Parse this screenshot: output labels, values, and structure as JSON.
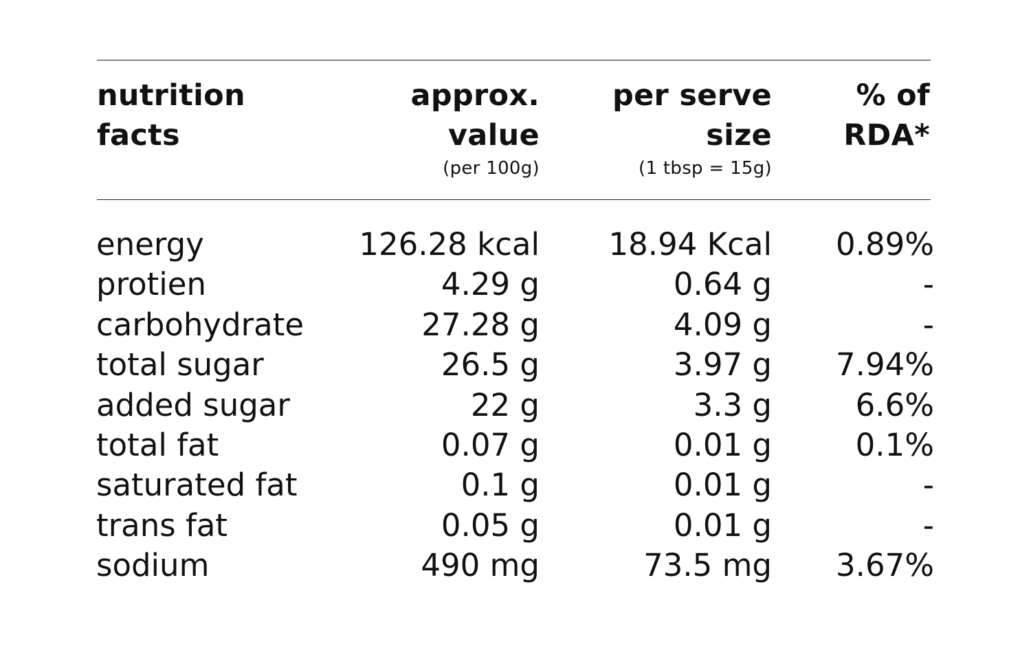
{
  "table": {
    "headers": {
      "col1": [
        "nutrition",
        "facts"
      ],
      "col2": [
        "approx.",
        "value"
      ],
      "col2_sub": "(per 100g)",
      "col3": [
        "per serve",
        "size"
      ],
      "col3_sub": "(1 tbsp = 15g)",
      "col4": [
        "% of",
        "RDA*"
      ]
    },
    "rows": [
      {
        "name": "energy",
        "value": "126.28 kcal",
        "serve": "18.94 Kcal",
        "rda": "0.89%"
      },
      {
        "name": "protien",
        "value": "4.29 g",
        "serve": "0.64 g",
        "rda": "-"
      },
      {
        "name": "carbohydrate",
        "value": "27.28 g",
        "serve": "4.09 g",
        "rda": "-"
      },
      {
        "name": "total sugar",
        "value": "26.5 g",
        "serve": "3.97 g",
        "rda": "7.94%"
      },
      {
        "name": "added sugar",
        "value": "22 g",
        "serve": "3.3 g",
        "rda": "6.6%"
      },
      {
        "name": "total fat",
        "value": "0.07 g",
        "serve": "0.01 g",
        "rda": "0.1%"
      },
      {
        "name": "saturated fat",
        "value": "0.1 g",
        "serve": "0.01 g",
        "rda": "-"
      },
      {
        "name": "trans fat",
        "value": "0.05 g",
        "serve": "0.01 g",
        "rda": "-"
      },
      {
        "name": "sodium",
        "value": "490 mg",
        "serve": "73.5 mg",
        "rda": "3.67%"
      }
    ]
  }
}
